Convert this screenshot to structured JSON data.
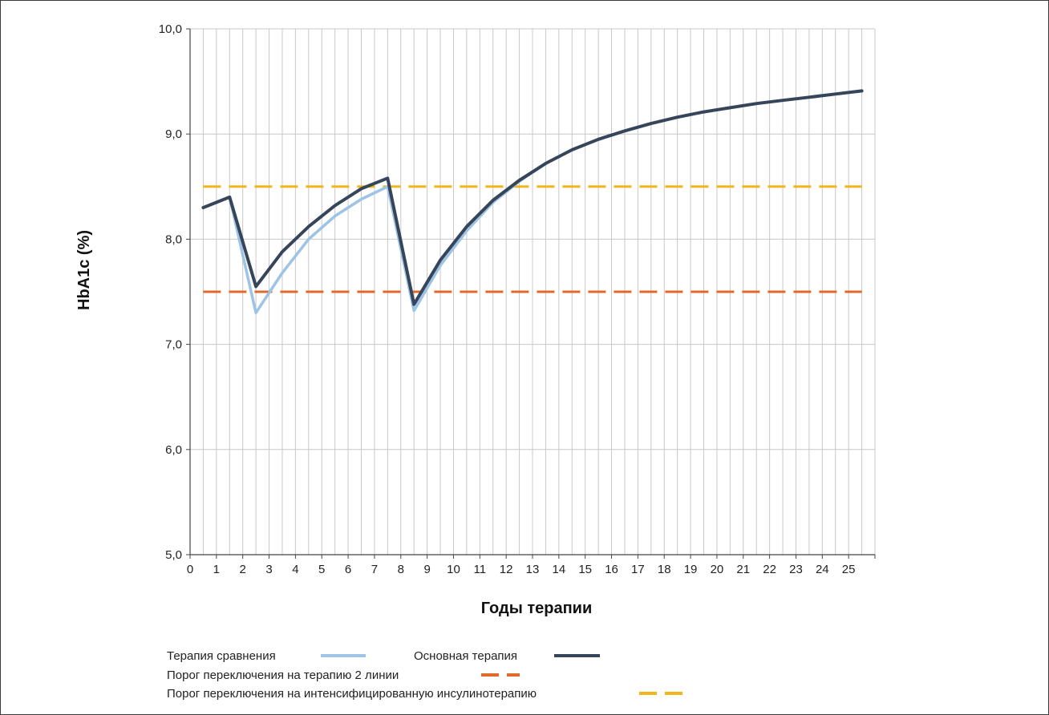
{
  "chart_data": {
    "type": "line",
    "title": "",
    "xlabel": "Годы терапии",
    "ylabel": "HbA1c (%)",
    "xlim": [
      0,
      26
    ],
    "ylim": [
      5.0,
      10.0
    ],
    "grid": true,
    "legend_position": "bottom-left",
    "x_ticks": [
      "0",
      "1",
      "2",
      "3",
      "4",
      "5",
      "6",
      "7",
      "8",
      "9",
      "10",
      "11",
      "12",
      "13",
      "14",
      "15",
      "16",
      "17",
      "18",
      "19",
      "20",
      "21",
      "22",
      "23",
      "24",
      "25"
    ],
    "y_ticks": [
      "5,0",
      "6,0",
      "7,0",
      "8,0",
      "9,0",
      "10,0"
    ],
    "y_tick_values": [
      5,
      6,
      7,
      8,
      9,
      10
    ],
    "series": [
      {
        "name": "Терапия сравнения",
        "color": "#9dc3e6",
        "style": "solid",
        "x": [
          0.5,
          1.5,
          2.5,
          3.5,
          4.5,
          5.5,
          6.5,
          7.5,
          8.5,
          9.5,
          10.5,
          11.5,
          12.5,
          13.5,
          14.5,
          15.5,
          16.5,
          17.5,
          18.5,
          19.5,
          20.5,
          21.5,
          22.5,
          23.5,
          24.5,
          25.5
        ],
        "y": [
          8.3,
          8.4,
          7.3,
          7.68,
          8.0,
          8.22,
          8.38,
          8.5,
          7.32,
          7.75,
          8.08,
          8.35,
          8.55,
          8.72,
          8.85,
          8.95,
          9.03,
          9.1,
          9.16,
          9.21,
          9.25,
          9.29,
          9.32,
          9.35,
          9.38,
          9.41
        ]
      },
      {
        "name": "Основная терапия",
        "color": "#36455a",
        "style": "solid",
        "x": [
          0.5,
          1.5,
          2.5,
          3.5,
          4.5,
          5.5,
          6.5,
          7.5,
          8.5,
          9.5,
          10.5,
          11.5,
          12.5,
          13.5,
          14.5,
          15.5,
          16.5,
          17.5,
          18.5,
          19.5,
          20.5,
          21.5,
          22.5,
          23.5,
          24.5,
          25.5
        ],
        "y": [
          8.3,
          8.4,
          7.55,
          7.88,
          8.12,
          8.32,
          8.48,
          8.58,
          7.38,
          7.8,
          8.12,
          8.37,
          8.56,
          8.72,
          8.85,
          8.95,
          9.03,
          9.1,
          9.16,
          9.21,
          9.25,
          9.29,
          9.32,
          9.35,
          9.38,
          9.41
        ]
      }
    ],
    "thresholds": [
      {
        "name": "Порог переключения на терапию 2 линии",
        "value": 7.5,
        "x_start": 0.5,
        "x_end": 25.5,
        "color": "#e06a2a",
        "style": "dashed"
      },
      {
        "name": "Порог переключения на интенсифицированную инсулинотерапию",
        "value": 8.5,
        "x_start": 0.5,
        "x_end": 25.5,
        "color": "#f2b51c",
        "style": "dashed"
      }
    ]
  }
}
